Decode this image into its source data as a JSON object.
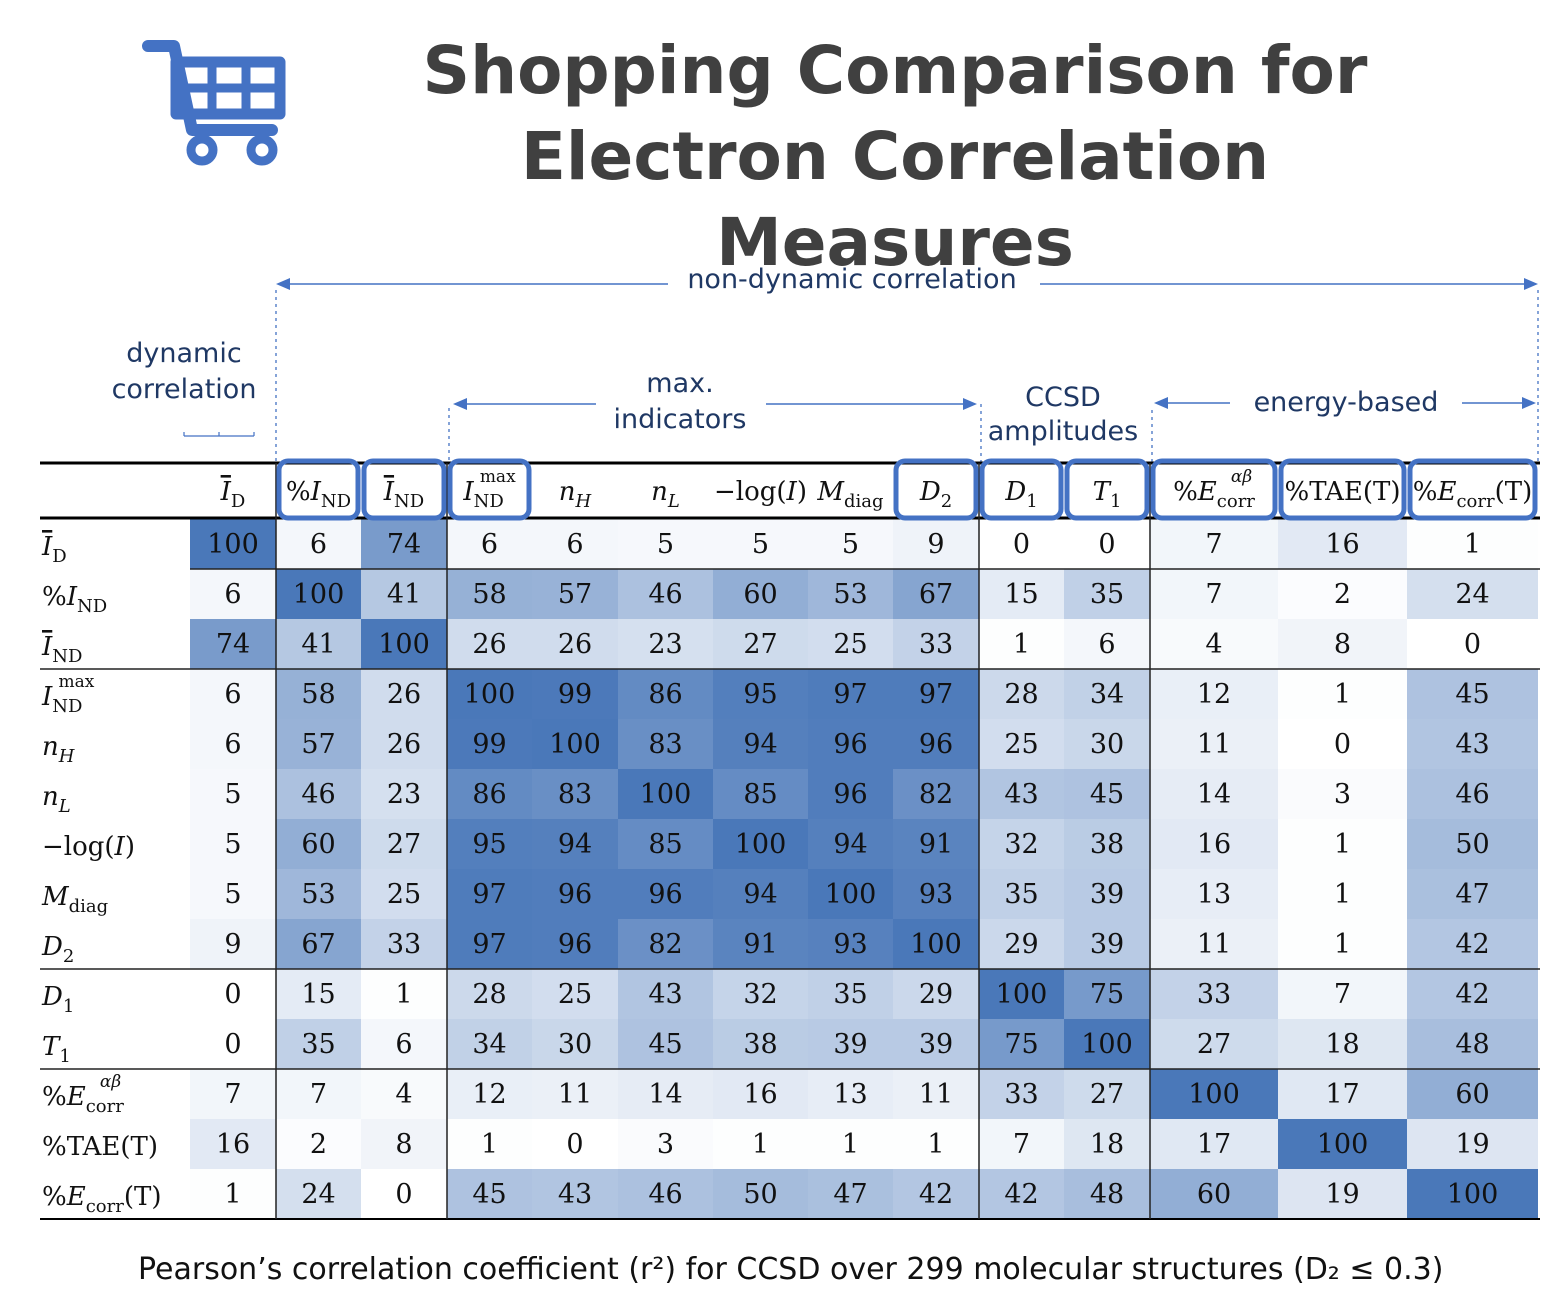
{
  "title": {
    "line1": "Shopping Comparison for",
    "line2": "Electron Correlation Measures"
  },
  "caption": "Pearson’s correlation coefficient (r²) for CCSD over 299 molecular structures (D₂ ≤ 0.3)",
  "icons": {
    "cart": "shopping-cart-icon"
  },
  "colors": {
    "accent": "#4472c4",
    "title": "#404040",
    "label": "#1f3864",
    "cell_max": "#4a78b9"
  },
  "groups": {
    "dynamic": "dynamic correlation",
    "non_dynamic": "non-dynamic correlation",
    "max_indicators": "max. indicators",
    "ccsd_amplitudes": "CCSD amplitudes",
    "energy_based": "energy-based"
  },
  "chart_data": {
    "type": "heatmap",
    "title": "Pearson’s correlation coefficient (r²) for CCSD over 299 molecular structures",
    "labels": [
      "Ī_D",
      "%I_ND",
      "Ī_ND",
      "I_ND^max",
      "n_H",
      "n_L",
      "−log(I)",
      "M_diag",
      "D_2",
      "D_1",
      "T_1",
      "%E_corr^αβ",
      "%TAE(T)",
      "%E_corr(T)"
    ],
    "highlighted_columns": [
      "%I_ND",
      "Ī_ND",
      "I_ND^max",
      "D_2",
      "D_1",
      "T_1",
      "%E_corr^αβ",
      "%TAE(T)",
      "%E_corr(T)"
    ],
    "value_range": [
      0,
      100
    ],
    "values": [
      [
        100,
        6,
        74,
        6,
        6,
        5,
        5,
        5,
        9,
        0,
        0,
        7,
        16,
        1
      ],
      [
        6,
        100,
        41,
        58,
        57,
        46,
        60,
        53,
        67,
        15,
        35,
        7,
        2,
        24
      ],
      [
        74,
        41,
        100,
        26,
        26,
        23,
        27,
        25,
        33,
        1,
        6,
        4,
        8,
        0
      ],
      [
        6,
        58,
        26,
        100,
        99,
        86,
        95,
        97,
        97,
        28,
        34,
        12,
        1,
        45
      ],
      [
        6,
        57,
        26,
        99,
        100,
        83,
        94,
        96,
        96,
        25,
        30,
        11,
        0,
        43
      ],
      [
        5,
        46,
        23,
        86,
        83,
        100,
        85,
        96,
        82,
        43,
        45,
        14,
        3,
        46
      ],
      [
        5,
        60,
        27,
        95,
        94,
        85,
        100,
        94,
        91,
        32,
        38,
        16,
        1,
        50
      ],
      [
        5,
        53,
        25,
        97,
        96,
        96,
        94,
        100,
        93,
        35,
        39,
        13,
        1,
        47
      ],
      [
        9,
        67,
        33,
        97,
        96,
        82,
        91,
        93,
        100,
        29,
        39,
        11,
        1,
        42
      ],
      [
        0,
        15,
        1,
        28,
        25,
        43,
        32,
        35,
        29,
        100,
        75,
        33,
        7,
        42
      ],
      [
        0,
        35,
        6,
        34,
        30,
        45,
        38,
        39,
        39,
        75,
        100,
        27,
        18,
        48
      ],
      [
        7,
        7,
        4,
        12,
        11,
        14,
        16,
        13,
        11,
        33,
        27,
        100,
        17,
        60
      ],
      [
        16,
        2,
        8,
        1,
        0,
        3,
        1,
        1,
        1,
        7,
        18,
        17,
        100,
        19
      ],
      [
        1,
        24,
        0,
        45,
        43,
        46,
        50,
        47,
        42,
        42,
        48,
        60,
        19,
        100
      ]
    ]
  }
}
